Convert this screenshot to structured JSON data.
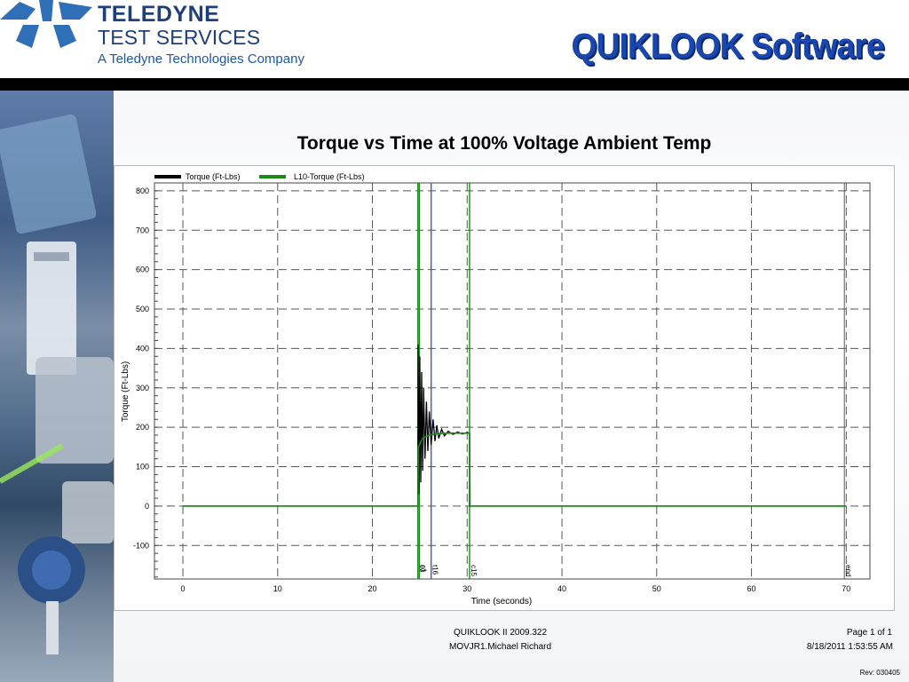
{
  "brand": {
    "line1": "TELEDYNE",
    "line2": "TEST SERVICES",
    "line3": "A Teledyne Technologies Company",
    "logo_color": "#2e6fb7",
    "text_color": "#1f3f78"
  },
  "product_title": "QUIKLOOK Software",
  "page_title": "Torque vs Time at 100% Voltage Ambient Temp",
  "footer": {
    "software": "QUIKLOOK II 2009.322",
    "file": "MOVJR1.Michael Richard",
    "page": "Page 1 of 1",
    "datetime": "8/18/2011 1:53:55 AM",
    "rev": "Rev: 030405"
  },
  "chart_data": {
    "type": "line",
    "title": "",
    "xlabel": "Time  (seconds)",
    "ylabel": "Torque  (Ft-Lbs)",
    "xlim": [
      -3,
      72.5
    ],
    "ylim": [
      -185,
      820
    ],
    "x_ticks": [
      0,
      10,
      20,
      30,
      40,
      50,
      60,
      70
    ],
    "y_ticks": [
      -100,
      0,
      100,
      200,
      300,
      400,
      500,
      600,
      700,
      800
    ],
    "grid": true,
    "legend_position": "top-left",
    "series": [
      {
        "name": "Torque   (Ft-Lbs)",
        "color": "#000000",
        "points": [
          [
            0,
            0
          ],
          [
            24.8,
            0
          ],
          [
            24.82,
            410
          ],
          [
            24.9,
            30
          ],
          [
            25.0,
            380
          ],
          [
            25.1,
            60
          ],
          [
            25.2,
            340
          ],
          [
            25.3,
            90
          ],
          [
            25.4,
            300
          ],
          [
            25.55,
            120
          ],
          [
            25.7,
            265
          ],
          [
            25.85,
            140
          ],
          [
            26.0,
            240
          ],
          [
            26.2,
            155
          ],
          [
            26.4,
            220
          ],
          [
            26.6,
            165
          ],
          [
            26.8,
            205
          ],
          [
            27.0,
            172
          ],
          [
            27.3,
            195
          ],
          [
            27.6,
            178
          ],
          [
            28.0,
            190
          ],
          [
            28.5,
            182
          ],
          [
            29.0,
            188
          ],
          [
            29.5,
            183
          ],
          [
            30.0,
            187
          ],
          [
            30.25,
            185
          ],
          [
            30.25,
            0
          ],
          [
            70,
            0
          ]
        ]
      },
      {
        "name": "L10-Torque   (Ft-Lbs)",
        "color": "#1a8a1a",
        "points": [
          [
            0,
            0
          ],
          [
            24.8,
            0
          ],
          [
            24.85,
            150
          ],
          [
            25.3,
            172
          ],
          [
            26.0,
            180
          ],
          [
            27.0,
            184
          ],
          [
            28.0,
            185
          ],
          [
            30.25,
            185
          ],
          [
            30.3,
            0
          ],
          [
            70,
            0
          ]
        ]
      }
    ],
    "markers": [
      {
        "label": "c0",
        "x": 24.8,
        "color": "#1a8a1a"
      },
      {
        "label": "c1",
        "x": 24.95,
        "color": "#1a8a1a"
      },
      {
        "label": "t16",
        "x": 26.2,
        "color": "#4d4dd6"
      },
      {
        "label": "c15",
        "x": 30.25,
        "color": "#1a8a1a"
      },
      {
        "label": "end",
        "x": 69.8,
        "color": "#555555"
      }
    ]
  }
}
